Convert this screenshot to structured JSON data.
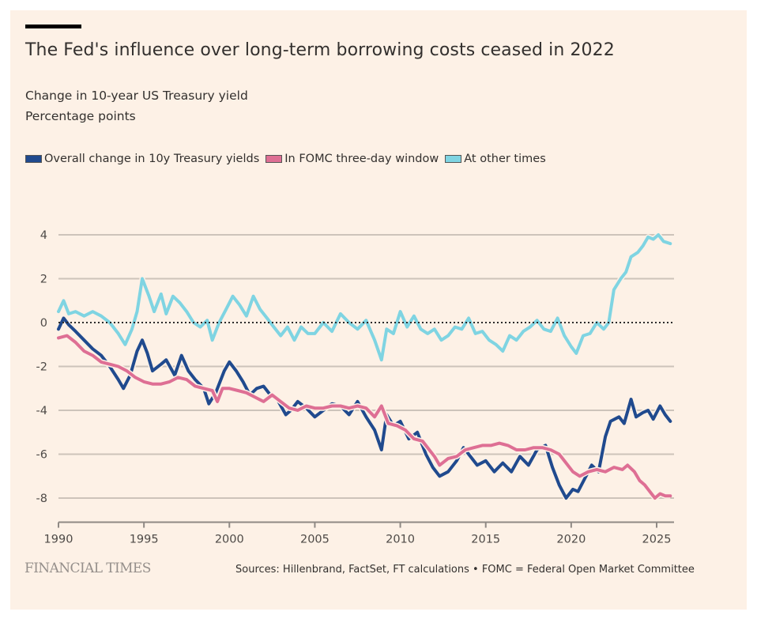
{
  "header": {
    "title": "The Fed's influence over long-term borrowing costs ceased in 2022",
    "subtitle_line1": "Change in 10-year US Treasury yield",
    "subtitle_line2": "Percentage points"
  },
  "legend": [
    {
      "label": "Overall change in 10y Treasury yields",
      "color": "#204a8e"
    },
    {
      "label": "In FOMC three-day window",
      "color": "#de6f94"
    },
    {
      "label": "At other times",
      "color": "#7fd4e2"
    }
  ],
  "footer": {
    "brand": "FINANCIAL TIMES",
    "source": "Sources: Hillenbrand, FactSet, FT calculations • FOMC = Federal Open Market Committee"
  },
  "chart_data": {
    "type": "line",
    "title": "The Fed's influence over long-term borrowing costs ceased in 2022",
    "subtitle": "Change in 10-year US Treasury yield",
    "ylabel": "Percentage points",
    "xlabel": "",
    "xlim": [
      1990,
      2026
    ],
    "ylim": [
      -9.1,
      4
    ],
    "x_ticks": [
      1990,
      1995,
      2000,
      2005,
      2010,
      2015,
      2020,
      2025
    ],
    "x_tick_labels": [
      "1990",
      "1995",
      "2000",
      "2005",
      "2010",
      "2015",
      "2020",
      "2025"
    ],
    "y_ticks": [
      4,
      2,
      0,
      -2,
      -4,
      -6,
      -8
    ],
    "y_tick_labels": [
      "4",
      "2",
      "0",
      "-2",
      "-4",
      "-6",
      "-8"
    ],
    "zero_line": "dotted",
    "grid": true,
    "legend_position": "top-left",
    "series": [
      {
        "name": "Overall change in 10y Treasury yields",
        "color": "#204a8e",
        "x": [
          1990,
          1990.3,
          1990.6,
          1991,
          1991.5,
          1992,
          1992.5,
          1993,
          1993.5,
          1993.8,
          1994.2,
          1994.6,
          1994.9,
          1995.2,
          1995.5,
          1996,
          1996.3,
          1996.8,
          1997.2,
          1997.6,
          1998,
          1998.5,
          1998.8,
          1999.2,
          1999.7,
          2000,
          2000.4,
          2000.8,
          2001.2,
          2001.6,
          2002,
          2002.4,
          2002.8,
          2003.3,
          2003.6,
          2004,
          2004.5,
          2005,
          2005.5,
          2006,
          2006.5,
          2007,
          2007.5,
          2008,
          2008.5,
          2008.9,
          2009.2,
          2009.6,
          2010,
          2010.5,
          2011,
          2011.5,
          2011.9,
          2012.3,
          2012.8,
          2013.3,
          2013.7,
          2014,
          2014.5,
          2015,
          2015.5,
          2016,
          2016.5,
          2017,
          2017.5,
          2018,
          2018.5,
          2018.9,
          2019.3,
          2019.7,
          2020.1,
          2020.4,
          2020.8,
          2021.2,
          2021.6,
          2022,
          2022.3,
          2022.8,
          2023.1,
          2023.5,
          2023.8,
          2024.2,
          2024.5,
          2024.8,
          2025.2,
          2025.5,
          2025.8
        ],
        "values": [
          -0.3,
          0.2,
          -0.1,
          -0.4,
          -0.8,
          -1.2,
          -1.5,
          -2.0,
          -2.6,
          -3.0,
          -2.4,
          -1.3,
          -0.8,
          -1.4,
          -2.2,
          -1.9,
          -1.7,
          -2.4,
          -1.5,
          -2.2,
          -2.6,
          -3.0,
          -3.7,
          -3.2,
          -2.2,
          -1.8,
          -2.2,
          -2.7,
          -3.3,
          -3.0,
          -2.9,
          -3.3,
          -3.5,
          -4.2,
          -4.0,
          -3.6,
          -3.9,
          -4.3,
          -4.0,
          -3.7,
          -3.8,
          -4.2,
          -3.6,
          -4.3,
          -4.9,
          -5.8,
          -4.2,
          -4.7,
          -4.5,
          -5.3,
          -5.0,
          -6.0,
          -6.6,
          -7.0,
          -6.8,
          -6.3,
          -5.7,
          -6.0,
          -6.5,
          -6.3,
          -6.8,
          -6.4,
          -6.8,
          -6.1,
          -6.5,
          -5.8,
          -5.6,
          -6.6,
          -7.4,
          -8.0,
          -7.6,
          -7.7,
          -7.1,
          -6.5,
          -6.8,
          -5.2,
          -4.5,
          -4.3,
          -4.6,
          -3.5,
          -4.3,
          -4.1,
          -4.0,
          -4.4,
          -3.8,
          -4.2,
          -4.5
        ]
      },
      {
        "name": "In FOMC three-day window",
        "color": "#de6f94",
        "x": [
          1990,
          1990.5,
          1991,
          1991.5,
          1992,
          1992.5,
          1993,
          1993.5,
          1994,
          1994.5,
          1995,
          1995.5,
          1996,
          1996.5,
          1997,
          1997.5,
          1998,
          1998.5,
          1999,
          1999.3,
          1999.6,
          2000,
          2000.5,
          2001,
          2001.5,
          2002,
          2002.5,
          2003,
          2003.5,
          2004,
          2004.5,
          2005,
          2005.5,
          2006,
          2006.5,
          2007,
          2007.5,
          2008,
          2008.5,
          2008.9,
          2009.3,
          2009.8,
          2010.3,
          2010.8,
          2011.3,
          2011.7,
          2012,
          2012.3,
          2012.8,
          2013.3,
          2013.8,
          2014.3,
          2014.8,
          2015.3,
          2015.8,
          2016.3,
          2016.8,
          2017.3,
          2017.8,
          2018.3,
          2018.8,
          2019.3,
          2019.7,
          2020.1,
          2020.5,
          2021,
          2021.5,
          2022,
          2022.5,
          2023,
          2023.3,
          2023.7,
          2024,
          2024.3,
          2024.7,
          2024.9,
          2025.2,
          2025.5,
          2025.8
        ],
        "values": [
          -0.7,
          -0.6,
          -0.9,
          -1.3,
          -1.5,
          -1.8,
          -1.9,
          -2.0,
          -2.2,
          -2.5,
          -2.7,
          -2.8,
          -2.8,
          -2.7,
          -2.5,
          -2.6,
          -2.9,
          -3.0,
          -3.1,
          -3.6,
          -3.0,
          -3.0,
          -3.1,
          -3.2,
          -3.4,
          -3.6,
          -3.3,
          -3.6,
          -3.9,
          -4.0,
          -3.8,
          -3.9,
          -3.9,
          -3.8,
          -3.8,
          -3.9,
          -3.8,
          -3.9,
          -4.3,
          -3.8,
          -4.6,
          -4.7,
          -4.9,
          -5.3,
          -5.4,
          -5.8,
          -6.1,
          -6.5,
          -6.2,
          -6.1,
          -5.8,
          -5.7,
          -5.6,
          -5.6,
          -5.5,
          -5.6,
          -5.8,
          -5.8,
          -5.7,
          -5.7,
          -5.8,
          -6.0,
          -6.4,
          -6.8,
          -7.0,
          -6.8,
          -6.7,
          -6.8,
          -6.6,
          -6.7,
          -6.5,
          -6.8,
          -7.2,
          -7.4,
          -7.8,
          -8.0,
          -7.8,
          -7.9,
          -7.9
        ]
      },
      {
        "name": "At other times",
        "color": "#7fd4e2",
        "x": [
          1990,
          1990.3,
          1990.6,
          1991,
          1991.5,
          1992,
          1992.5,
          1993,
          1993.5,
          1993.9,
          1994.3,
          1994.6,
          1994.9,
          1995.3,
          1995.6,
          1996,
          1996.3,
          1996.7,
          1997.1,
          1997.5,
          1997.9,
          1998.3,
          1998.7,
          1999,
          1999.4,
          1999.8,
          2000.2,
          2000.6,
          2001,
          2001.4,
          2001.8,
          2002.2,
          2002.6,
          2003,
          2003.4,
          2003.8,
          2004.2,
          2004.6,
          2005,
          2005.5,
          2006,
          2006.5,
          2007,
          2007.5,
          2008,
          2008.5,
          2008.9,
          2009.2,
          2009.6,
          2010,
          2010.4,
          2010.8,
          2011.2,
          2011.6,
          2012,
          2012.4,
          2012.8,
          2013.2,
          2013.6,
          2014,
          2014.4,
          2014.8,
          2015.2,
          2015.6,
          2016,
          2016.4,
          2016.8,
          2017.2,
          2017.6,
          2018,
          2018.4,
          2018.8,
          2019.2,
          2019.6,
          2020,
          2020.3,
          2020.7,
          2021.1,
          2021.5,
          2021.9,
          2022.2,
          2022.5,
          2022.9,
          2023.2,
          2023.5,
          2023.9,
          2024.2,
          2024.5,
          2024.8,
          2025.1,
          2025.4,
          2025.8
        ],
        "values": [
          0.5,
          1.0,
          0.4,
          0.5,
          0.3,
          0.5,
          0.3,
          0.0,
          -0.5,
          -1.0,
          -0.3,
          0.5,
          2.0,
          1.2,
          0.5,
          1.3,
          0.4,
          1.2,
          0.9,
          0.5,
          0.0,
          -0.2,
          0.1,
          -0.8,
          0.0,
          0.6,
          1.2,
          0.8,
          0.3,
          1.2,
          0.6,
          0.2,
          -0.2,
          -0.6,
          -0.2,
          -0.8,
          -0.2,
          -0.5,
          -0.5,
          0.0,
          -0.4,
          0.4,
          0.0,
          -0.3,
          0.1,
          -0.8,
          -1.7,
          -0.3,
          -0.5,
          0.5,
          -0.2,
          0.3,
          -0.3,
          -0.5,
          -0.3,
          -0.8,
          -0.6,
          -0.2,
          -0.3,
          0.2,
          -0.5,
          -0.4,
          -0.8,
          -1.0,
          -1.3,
          -0.6,
          -0.8,
          -0.4,
          -0.2,
          0.1,
          -0.3,
          -0.4,
          0.2,
          -0.6,
          -1.1,
          -1.4,
          -0.6,
          -0.5,
          0.0,
          -0.3,
          0.0,
          1.5,
          2.0,
          2.3,
          3.0,
          3.2,
          3.5,
          3.9,
          3.8,
          4.0,
          3.7,
          3.6
        ]
      }
    ]
  }
}
